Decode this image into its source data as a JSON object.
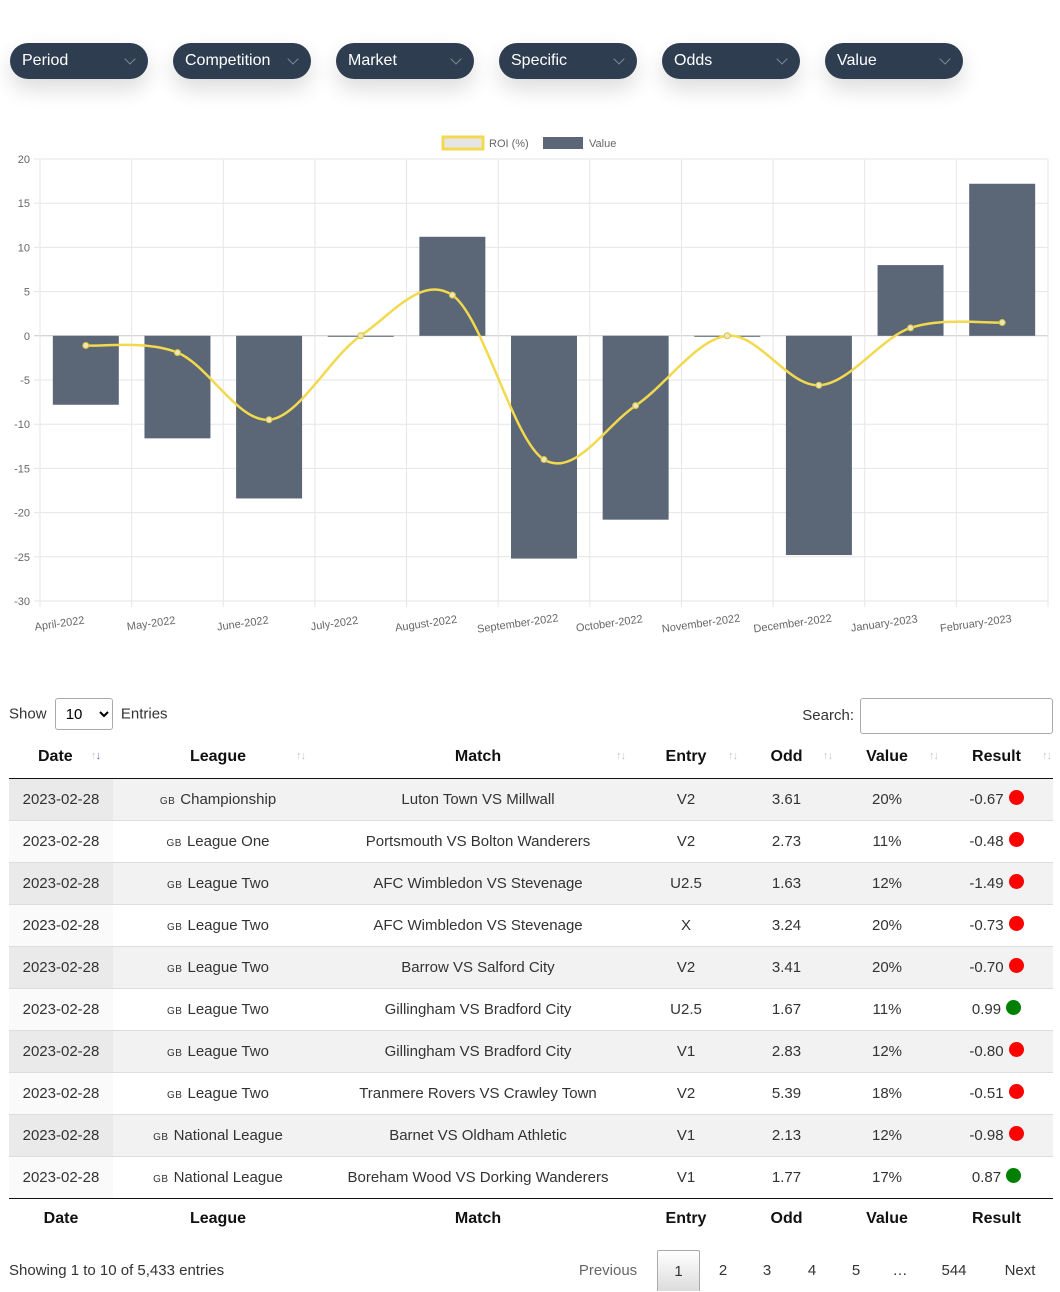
{
  "filters": [
    {
      "label": "Period"
    },
    {
      "label": "Competition"
    },
    {
      "label": "Market"
    },
    {
      "label": "Specific"
    },
    {
      "label": "Odds"
    },
    {
      "label": "Value"
    }
  ],
  "colors": {
    "navy": "#2f3d51",
    "bar": "#5b6677",
    "roi_line": "#f2d94e",
    "loss": "#ff0000",
    "win": "#008000"
  },
  "chart_data": {
    "type": "bar",
    "categories": [
      "April-2022",
      "May-2022",
      "June-2022",
      "July-2022",
      "August-2022",
      "September-2022",
      "October-2022",
      "November-2022",
      "December-2022",
      "January-2023",
      "February-2023"
    ],
    "series": [
      {
        "name": "ROI (%)",
        "type": "line",
        "color": "#f2d94e",
        "values": [
          -1.1,
          -1.9,
          -9.5,
          0.0,
          4.6,
          -14.0,
          -7.9,
          0.0,
          -5.6,
          0.9,
          1.5
        ]
      },
      {
        "name": "Value",
        "type": "bar",
        "color": "#5b6677",
        "values": [
          -7.8,
          -11.6,
          -18.4,
          -0.1,
          11.2,
          -25.2,
          -20.8,
          0.0,
          -24.8,
          8.0,
          17.2
        ]
      }
    ],
    "ylim": [
      -30,
      20
    ],
    "yticks": [
      "20",
      "15",
      "10",
      "5",
      "0",
      "-5",
      "-10",
      "-15",
      "-20",
      "-25",
      "-30"
    ],
    "grid": true,
    "legend_position": "top-center"
  },
  "table": {
    "show_label": "Show",
    "entries_label": "Entries",
    "page_length": "10",
    "search_label": "Search:",
    "columns": [
      "Date",
      "League",
      "Match",
      "Entry",
      "Odd",
      "Value",
      "Result"
    ],
    "flag_label": "GB",
    "rows": [
      {
        "date": "2023-02-28",
        "league": "Championship",
        "match": "Luton Town VS Millwall",
        "entry": "V2",
        "odd": "3.61",
        "value": "20%",
        "result": "-0.67",
        "win": false
      },
      {
        "date": "2023-02-28",
        "league": "League One",
        "match": "Portsmouth VS Bolton Wanderers",
        "entry": "V2",
        "odd": "2.73",
        "value": "11%",
        "result": "-0.48",
        "win": false
      },
      {
        "date": "2023-02-28",
        "league": "League Two",
        "match": "AFC Wimbledon VS Stevenage",
        "entry": "U2.5",
        "odd": "1.63",
        "value": "12%",
        "result": "-1.49",
        "win": false
      },
      {
        "date": "2023-02-28",
        "league": "League Two",
        "match": "AFC Wimbledon VS Stevenage",
        "entry": "X",
        "odd": "3.24",
        "value": "20%",
        "result": "-0.73",
        "win": false
      },
      {
        "date": "2023-02-28",
        "league": "League Two",
        "match": "Barrow VS Salford City",
        "entry": "V2",
        "odd": "3.41",
        "value": "20%",
        "result": "-0.70",
        "win": false
      },
      {
        "date": "2023-02-28",
        "league": "League Two",
        "match": "Gillingham VS Bradford City",
        "entry": "U2.5",
        "odd": "1.67",
        "value": "11%",
        "result": "0.99",
        "win": true
      },
      {
        "date": "2023-02-28",
        "league": "League Two",
        "match": "Gillingham VS Bradford City",
        "entry": "V1",
        "odd": "2.83",
        "value": "12%",
        "result": "-0.80",
        "win": false
      },
      {
        "date": "2023-02-28",
        "league": "League Two",
        "match": "Tranmere Rovers VS Crawley Town",
        "entry": "V2",
        "odd": "5.39",
        "value": "18%",
        "result": "-0.51",
        "win": false
      },
      {
        "date": "2023-02-28",
        "league": "National League",
        "match": "Barnet VS Oldham Athletic",
        "entry": "V1",
        "odd": "2.13",
        "value": "12%",
        "result": "-0.98",
        "win": false
      },
      {
        "date": "2023-02-28",
        "league": "National League",
        "match": "Boreham Wood VS Dorking Wanderers",
        "entry": "V1",
        "odd": "1.77",
        "value": "17%",
        "result": "0.87",
        "win": true
      }
    ],
    "info": "Showing 1 to 10 of 5,433 entries",
    "pagination": {
      "previous": "Previous",
      "pages": [
        "1",
        "2",
        "3",
        "4",
        "5",
        "…",
        "544"
      ],
      "next": "Next",
      "current": "1"
    }
  }
}
